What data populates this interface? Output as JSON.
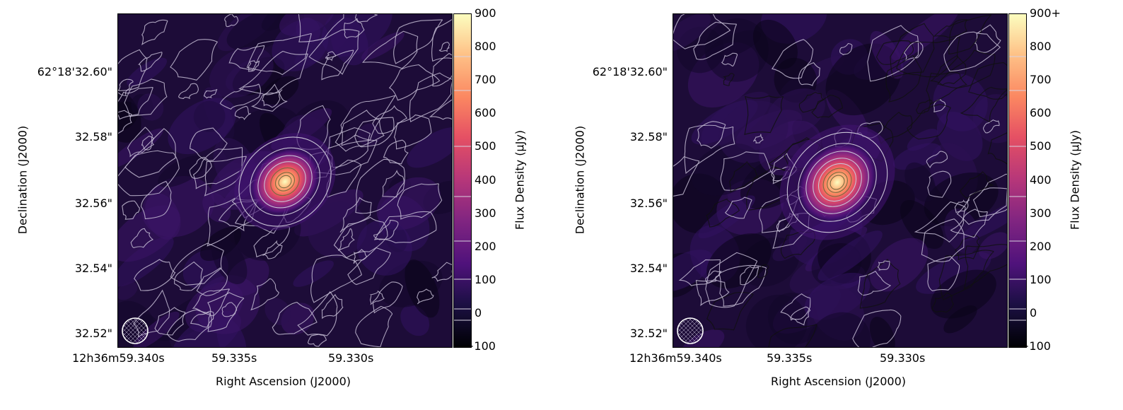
{
  "chart_data": [
    {
      "type": "heatmap",
      "title": "",
      "xlabel": "Right Ascension (J2000)",
      "ylabel": "Declination (J2000)",
      "x_tick_labels": [
        "12h36m59.340s",
        "59.335s",
        "59.330s"
      ],
      "y_tick_labels": [
        "62°18'32.60\"",
        "32.58\"",
        "32.56\"",
        "32.54\"",
        "32.52\""
      ],
      "colorbar": {
        "label": "Flux Density (μJy)",
        "range": [
          -100,
          900
        ],
        "tick_labels": [
          "900",
          "800",
          "700",
          "600",
          "500",
          "400",
          "300",
          "200",
          "100",
          "0",
          "−100"
        ],
        "colormap": "magma"
      },
      "source": {
        "ra": "59.3335s",
        "dec": "32.567\"",
        "peak_uJy": 900
      },
      "beam": "circular, lower-left",
      "contours": true
    },
    {
      "type": "heatmap",
      "title": "",
      "xlabel": "Right Ascension (J2000)",
      "ylabel": "Declination (J2000)",
      "x_tick_labels": [
        "12h36m59.340s",
        "59.335s",
        "59.330s"
      ],
      "y_tick_labels": [
        "62°18'32.60\"",
        "32.58\"",
        "32.56\"",
        "32.54\"",
        "32.52\""
      ],
      "colorbar": {
        "label": "Flux Density (μJy)",
        "range": [
          -100,
          900
        ],
        "tick_labels": [
          "900+",
          "800",
          "700",
          "600",
          "500",
          "400",
          "300",
          "200",
          "100",
          "0",
          "−100"
        ],
        "colormap": "magma"
      },
      "source": {
        "ra": "59.3335s",
        "dec": "32.567\"",
        "peak_uJy": 900
      },
      "beam": "circular, lower-left",
      "contours": true
    }
  ]
}
